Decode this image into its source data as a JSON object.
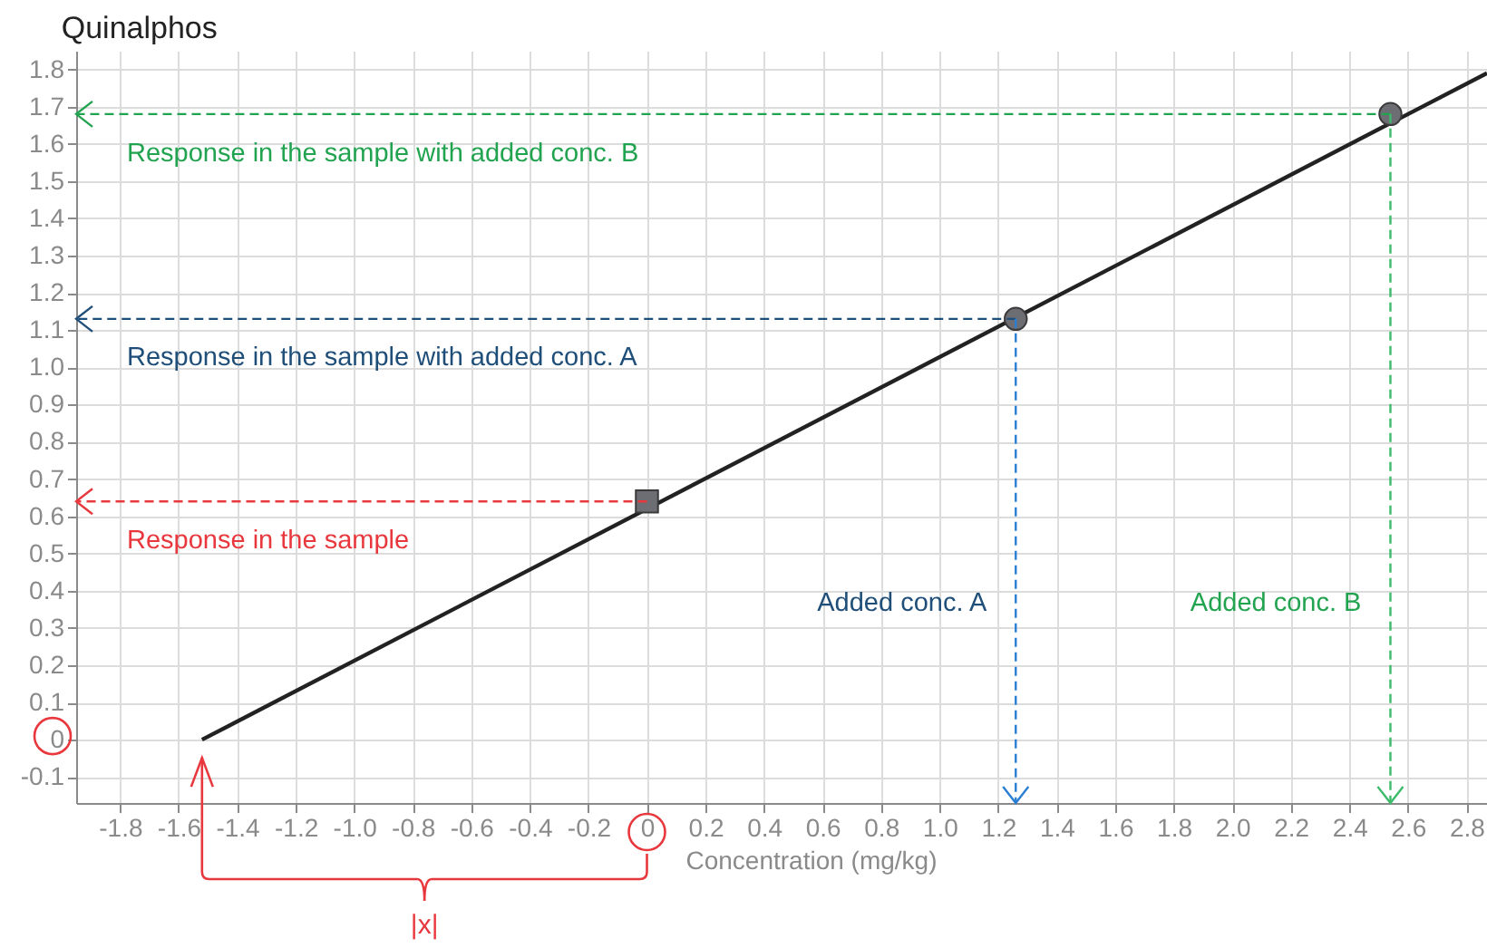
{
  "chart_data": {
    "type": "line",
    "title": "Quinalphos",
    "xlabel": "Concentration (mg/kg)",
    "xlim": [
      -1.95,
      2.87
    ],
    "ylim": [
      -0.17,
      1.85
    ],
    "xticks": [
      -1.8,
      -1.6,
      -1.4,
      -1.2,
      {
        "value": -1,
        "label": "-1.0"
      },
      -0.8,
      -0.6,
      -0.4,
      -0.2,
      0,
      0.2,
      0.4,
      0.6,
      0.8,
      {
        "value": 1,
        "label": "1.0"
      },
      1.2,
      1.4,
      1.6,
      1.8,
      {
        "value": 2,
        "label": "2.0"
      },
      2.2,
      2.4,
      2.6,
      2.8
    ],
    "yticks": [
      -0.1,
      0,
      0.1,
      0.2,
      0.3,
      0.4,
      0.5,
      0.6,
      0.7,
      0.8,
      0.9,
      {
        "value": 1,
        "label": "1.0"
      },
      1.1,
      1.2,
      1.3,
      1.4,
      1.5,
      1.6,
      1.7,
      1.8
    ],
    "grid": true,
    "series": [
      {
        "type": "line",
        "color": "#222222",
        "x": [
          -1.52,
          2.87
        ],
        "values": [
          0,
          1.79
        ]
      },
      {
        "type": "scatter",
        "color": "#6d6e73",
        "marker": "square",
        "x": [
          0
        ],
        "values": [
          0.64
        ]
      },
      {
        "type": "scatter",
        "color": "#6d6e73",
        "marker": "circle",
        "x": [
          1.26,
          2.54
        ],
        "values": [
          1.13,
          1.68
        ]
      }
    ],
    "ref_lines": [
      {
        "axis": "y",
        "value": 1.68,
        "label": "Response in the sample with added conc. B",
        "color": "#22a350",
        "line_style": "dashed"
      },
      {
        "axis": "y",
        "value": 1.13,
        "label": "Response in the sample with added conc. A",
        "color": "#1f4e79",
        "line_style": "dashed"
      },
      {
        "axis": "y",
        "value": 0.64,
        "label": "Response in the sample",
        "color": "#e8383d",
        "line_style": "dashed"
      },
      {
        "axis": "x",
        "value": 1.26,
        "label": "Added conc. A",
        "color": "#2a7fd4",
        "line_style": "dashed"
      },
      {
        "axis": "x",
        "value": 2.54,
        "label": "Added conc. B",
        "color": "#3dbb6a",
        "line_style": "dashed"
      }
    ],
    "annotations": [
      "|x|"
    ]
  }
}
